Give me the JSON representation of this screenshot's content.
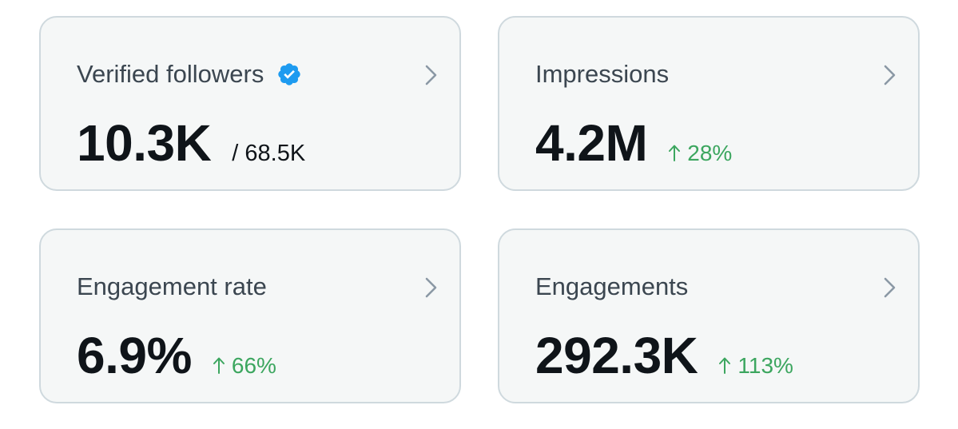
{
  "colors": {
    "card_background": "#f5f7f7",
    "card_border": "#cfd9de",
    "positive": "#3ca65f",
    "verified_badge": "#1d9bf0",
    "primary_text": "#0f1419",
    "secondary_text": "#536471"
  },
  "cards": [
    {
      "title": "Verified followers",
      "icon": "verified-badge-icon",
      "value": "10.3K",
      "secondary": "/ 68.5K"
    },
    {
      "title": "Impressions",
      "value": "4.2M",
      "change": "28%",
      "change_direction": "up"
    },
    {
      "title": "Engagement rate",
      "value": "6.9%",
      "change": "66%",
      "change_direction": "up"
    },
    {
      "title": "Engagements",
      "value": "292.3K",
      "change": "113%",
      "change_direction": "up"
    }
  ]
}
